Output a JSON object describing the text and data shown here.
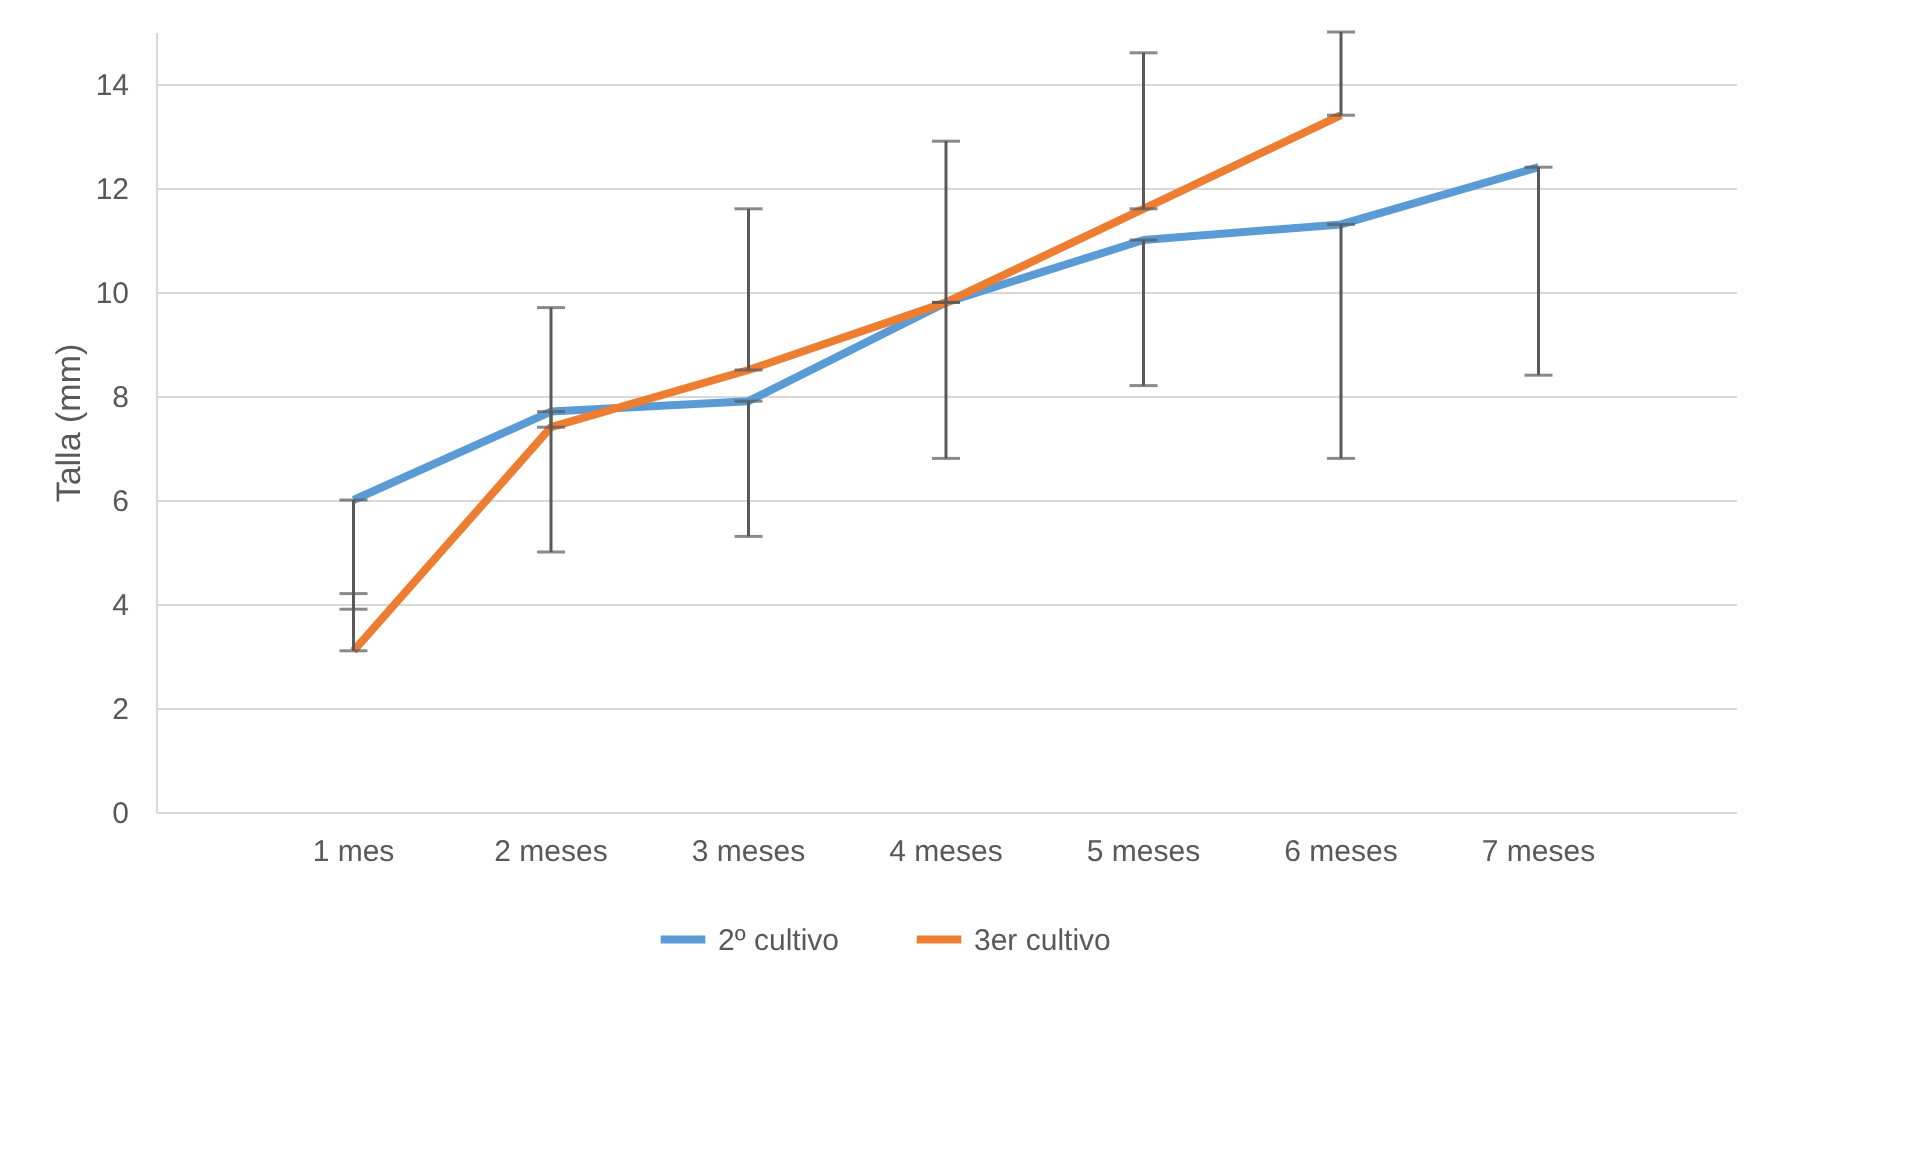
{
  "chart_data": {
    "type": "line",
    "ylabel": "Talla (mm)",
    "categories": [
      "1 mes",
      "2 meses",
      "3 meses",
      "4 meses",
      "5 meses",
      "6 meses",
      "7 meses"
    ],
    "series": [
      {
        "name": "2º cultivo",
        "color": "#5b9bd5",
        "values": [
          6.0,
          7.7,
          7.9,
          9.8,
          11.0,
          11.3,
          12.4
        ],
        "errors": [
          [
            3.9,
            6.0
          ],
          [
            5.0,
            7.7
          ],
          [
            5.3,
            7.9
          ],
          [
            6.8,
            9.8
          ],
          [
            8.2,
            11.0
          ],
          [
            6.8,
            11.3
          ],
          [
            8.4,
            12.4
          ]
        ]
      },
      {
        "name": "3er cultivo",
        "color": "#ed7d31",
        "values": [
          3.1,
          7.4,
          8.5,
          9.8,
          11.6,
          13.4,
          null
        ],
        "errors": [
          [
            3.1,
            4.2
          ],
          [
            7.4,
            9.7
          ],
          [
            8.5,
            11.6
          ],
          [
            9.8,
            12.9
          ],
          [
            11.6,
            14.6
          ],
          [
            13.4,
            15.0
          ],
          null
        ]
      }
    ],
    "ylim": [
      0,
      15
    ],
    "yticks": [
      0,
      2,
      4,
      6,
      8,
      10,
      12,
      14
    ],
    "grid": "y",
    "legend": "bottom",
    "marker": "none",
    "line_style": "solid"
  }
}
